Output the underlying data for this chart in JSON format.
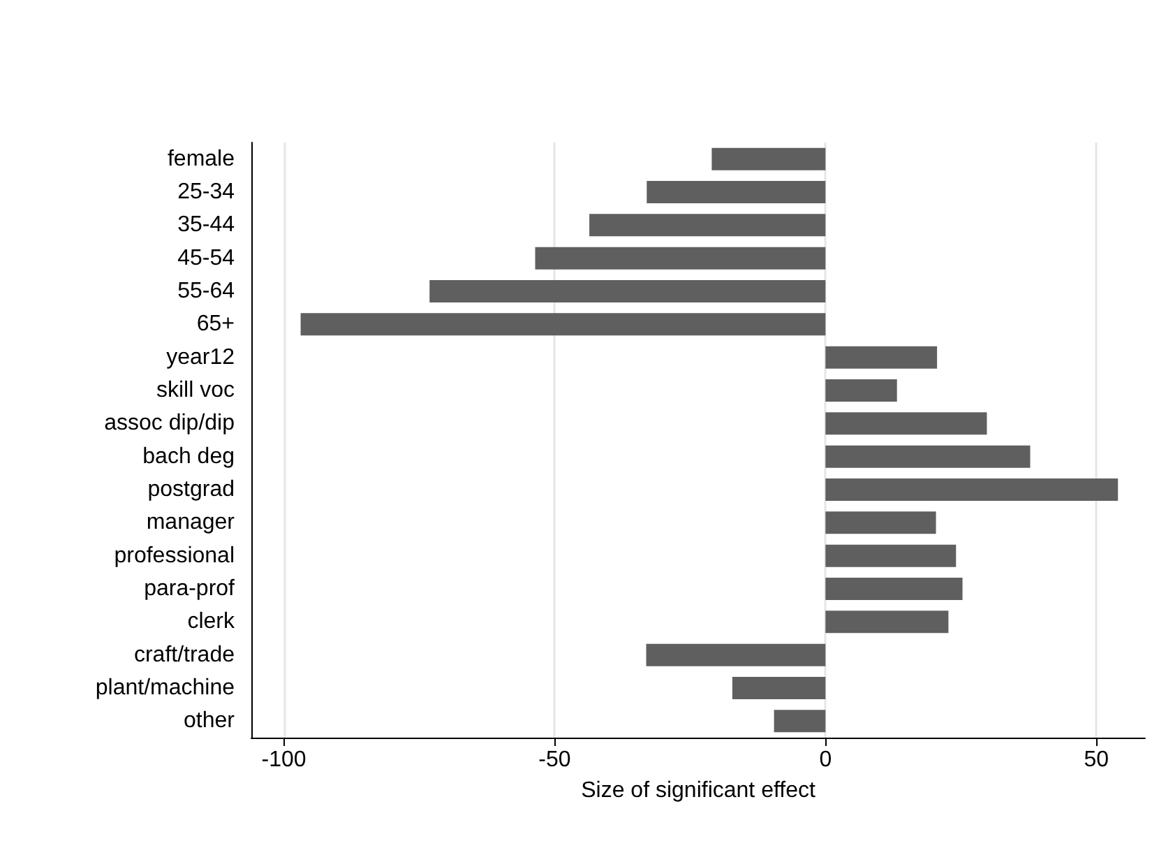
{
  "chart_data": {
    "type": "bar",
    "orientation": "horizontal",
    "xlabel": "Size of significant effect",
    "categories": [
      "female",
      "25-34",
      "35-44",
      "45-54",
      "55-64",
      "65+",
      "year12",
      "skill voc",
      "assoc dip/dip",
      "bach deg",
      "postgrad",
      "manager",
      "professional",
      "para-prof",
      "clerk",
      "craft/trade",
      "plant/machine",
      "other"
    ],
    "values": [
      -21,
      -33,
      -43.6,
      -53.6,
      -73.1,
      -96.9,
      20.6,
      13.2,
      29.8,
      37.8,
      54,
      20.4,
      24.1,
      25.3,
      22.7,
      -33.1,
      -17.2,
      -9.5
    ],
    "color": "#5f5f5f",
    "xlim": [
      -106,
      59
    ],
    "xticks": [
      -100,
      -50,
      0,
      50
    ],
    "grid": "x"
  }
}
